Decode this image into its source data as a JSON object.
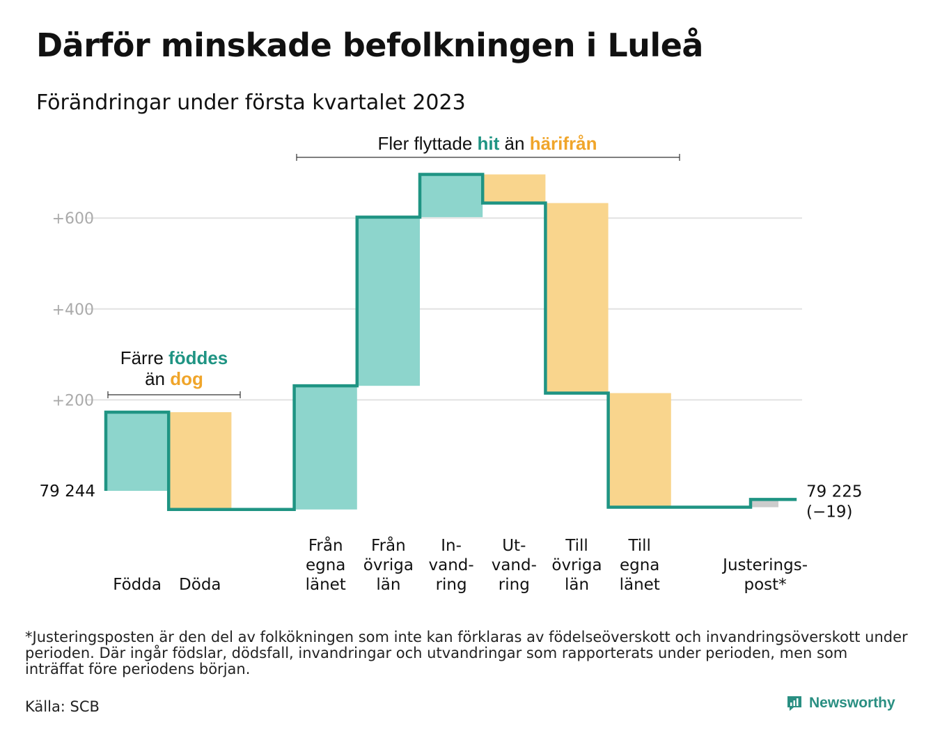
{
  "title": "Därför minskade befolkningen i Luleå",
  "subtitle": "Förändringar under första kvartalet 2023",
  "footnote": "*Justeringsposten är den del av folkökningen som inte kan förklaras av födelseöverskott och invandringsöverskott under perioden. Där ingår födslar, dödsfall, invandringar och utvandringar som rapporterats under perioden, men som inträffat före periodens början.",
  "source": "Källa: SCB",
  "brand": "Newsworthy",
  "colors": {
    "increase": "#8dd5cc",
    "decrease": "#f9d58d",
    "adjustment": "#cccccc",
    "line": "#1f9483",
    "grid": "#e2e2e2",
    "tick": "#aaaaaa",
    "hit": "#1f9483",
    "harifran": "#f0a52a"
  },
  "annotations": {
    "births": {
      "line1_prefix": "Färre ",
      "line1_highlight": "föddes",
      "line2_prefix": "än ",
      "line2_highlight": "dog"
    },
    "migration": {
      "prefix": "Fler flyttade ",
      "highlight1": "hit",
      "middle": " än ",
      "highlight2": "härifrån"
    }
  },
  "chart_data": {
    "type": "waterfall",
    "start_label": "79 244",
    "end_label_value": "79 225",
    "end_label_change": "(−19)",
    "ylim": [
      -50,
      700
    ],
    "yticks": [
      {
        "value": 200,
        "label": "+200"
      },
      {
        "value": 400,
        "label": "+400"
      },
      {
        "value": 600,
        "label": "+600"
      }
    ],
    "steps": [
      {
        "key": "fodda",
        "label": [
          "Födda"
        ],
        "change": 173,
        "kind": "increase"
      },
      {
        "key": "doda",
        "label": [
          "Döda"
        ],
        "change": -214,
        "kind": "decrease"
      },
      {
        "key": "gap",
        "label": [],
        "change": 0,
        "kind": "none"
      },
      {
        "key": "fran_egna",
        "label": [
          "Från",
          "egna",
          "länet"
        ],
        "change": 272,
        "kind": "increase"
      },
      {
        "key": "fran_ovriga",
        "label": [
          "Från",
          "övriga",
          "län"
        ],
        "change": 371,
        "kind": "increase"
      },
      {
        "key": "invandring",
        "label": [
          "In-",
          "vand-",
          "ring"
        ],
        "change": 94,
        "kind": "increase"
      },
      {
        "key": "utvandring",
        "label": [
          "Ut-",
          "vand-",
          "ring"
        ],
        "change": -63,
        "kind": "decrease"
      },
      {
        "key": "till_ovriga",
        "label": [
          "Till",
          "övriga",
          "län"
        ],
        "change": -418,
        "kind": "decrease"
      },
      {
        "key": "till_egna",
        "label": [
          "Till",
          "egna",
          "länet"
        ],
        "change": -251,
        "kind": "decrease"
      },
      {
        "key": "gap2",
        "label": [],
        "change": 0,
        "kind": "none"
      },
      {
        "key": "justering",
        "label": [
          "Justerings-",
          "post*"
        ],
        "change": 17,
        "kind": "adjustment"
      }
    ]
  }
}
